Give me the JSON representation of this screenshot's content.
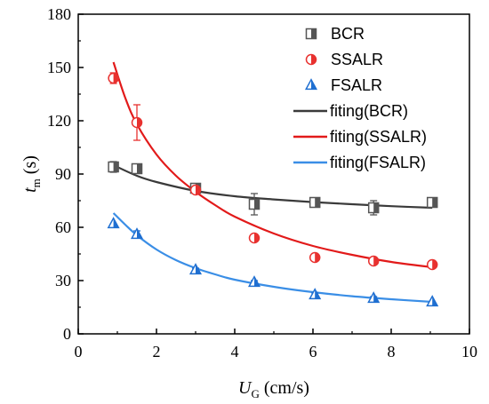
{
  "chart_data": {
    "type": "scatter",
    "xlabel": {
      "main": "U",
      "sub": "G",
      "unit": " (cm/s)"
    },
    "ylabel": {
      "main": "t",
      "sub": "m",
      "unit": " (s)"
    },
    "xlim": [
      0,
      10
    ],
    "ylim": [
      0,
      180
    ],
    "xticks": [
      0,
      2,
      4,
      6,
      8,
      10
    ],
    "yticks": [
      0,
      30,
      60,
      90,
      120,
      150,
      180
    ],
    "grid": false,
    "legend_position": "top-right",
    "series": [
      {
        "name": "BCR",
        "marker": "half-filled-square",
        "color": "#555555",
        "x": [
          0.9,
          1.5,
          3.0,
          4.5,
          6.05,
          7.55,
          9.05
        ],
        "y": [
          94,
          93,
          82,
          73,
          74,
          71,
          74
        ],
        "err": [
          3,
          2,
          2,
          6,
          1,
          4,
          1
        ]
      },
      {
        "name": "SSALR",
        "marker": "half-filled-circle",
        "color": "#e8312f",
        "x": [
          0.9,
          1.5,
          3.0,
          4.5,
          6.05,
          7.55,
          9.05
        ],
        "y": [
          144,
          119,
          81,
          54,
          43,
          41,
          39
        ],
        "err": [
          3,
          10,
          1,
          0,
          0,
          0,
          0
        ]
      },
      {
        "name": "FSALR",
        "marker": "half-filled-triangle",
        "color": "#1f6fd1",
        "x": [
          0.9,
          1.5,
          3.0,
          4.5,
          6.05,
          7.55,
          9.05
        ],
        "y": [
          62,
          56,
          36,
          29,
          22,
          20,
          18
        ],
        "err": [
          0,
          2,
          1,
          1,
          1,
          1,
          0
        ]
      }
    ],
    "fits": [
      {
        "name": "fiting(BCR)",
        "color": "#3a3a3a",
        "x": [
          0.9,
          1.5,
          2.0,
          3.0,
          4.0,
          5.0,
          6.0,
          7.0,
          8.0,
          9.05
        ],
        "y": [
          95,
          89,
          85.5,
          80.5,
          77.5,
          75.7,
          74.2,
          73,
          71.9,
          71
        ]
      },
      {
        "name": "fiting(SSALR)",
        "color": "#e21a1a",
        "x": [
          0.9,
          1.2,
          1.5,
          2.0,
          2.5,
          3.0,
          3.5,
          4.0,
          5.0,
          6.0,
          7.0,
          8.0,
          9.05
        ],
        "y": [
          153,
          133,
          118,
          101,
          89,
          80,
          72.5,
          66,
          56.5,
          49.5,
          44.5,
          40.5,
          37.5
        ]
      },
      {
        "name": "fiting(FSALR)",
        "color": "#3a8ee6",
        "x": [
          0.9,
          1.2,
          1.5,
          2.0,
          2.5,
          3.0,
          3.5,
          4.0,
          5.0,
          6.0,
          7.0,
          8.0,
          9.05
        ],
        "y": [
          68,
          61.5,
          55.5,
          47.5,
          41.5,
          37,
          33.5,
          30.5,
          26.5,
          23.5,
          21.2,
          19.5,
          18
        ]
      }
    ]
  }
}
